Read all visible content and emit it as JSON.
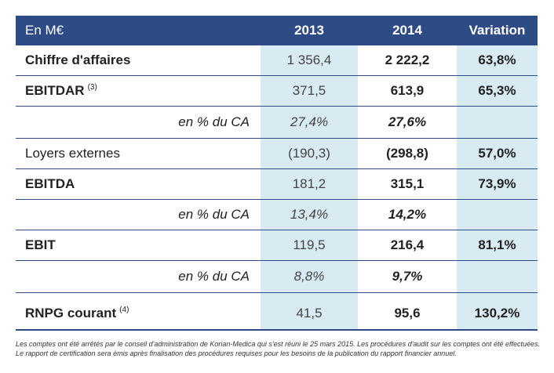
{
  "header": {
    "label": "En M€",
    "col2013": "2013",
    "col2014": "2014",
    "colVar": "Variation"
  },
  "rows": [
    {
      "label": "Chiffre d'affaires",
      "note": "",
      "v2013": "1 356,4",
      "v2014": "2 222,2",
      "var": "63,8%"
    },
    {
      "label": "EBITDAR",
      "note": "(3)",
      "v2013": "371,5",
      "v2014": "613,9",
      "var": "65,3%"
    },
    {
      "label": "en % du CA",
      "note": "",
      "v2013": "27,4%",
      "v2014": "27,6%",
      "var": ""
    },
    {
      "label": "Loyers externes",
      "note": "",
      "v2013": "(190,3)",
      "v2014": "(298,8)",
      "var": "57,0%"
    },
    {
      "label": "EBITDA",
      "note": "",
      "v2013": "181,2",
      "v2014": "315,1",
      "var": "73,9%"
    },
    {
      "label": "en % du CA",
      "note": "",
      "v2013": "13,4%",
      "v2014": "14,2%",
      "var": ""
    },
    {
      "label": "EBIT",
      "note": "",
      "v2013": "119,5",
      "v2014": "216,4",
      "var": "81,1%"
    },
    {
      "label": "en % du CA",
      "note": "",
      "v2013": "8,8%",
      "v2014": "9,7%",
      "var": ""
    },
    {
      "label": "RNPG courant",
      "note": "(4)",
      "v2013": "41,5",
      "v2014": "95,6",
      "var": "130,2%"
    }
  ],
  "footer": "Les comptes ont été arrêtés par le conseil d'administration de Korian-Medica qui s'est réuni le 25 mars 2015. Les procédures d'audit sur les comptes ont été effectuées. Le rapport de certification sera émis après finalisation des procédures requises pour les besoins de la publication du rapport financier annuel.",
  "colors": {
    "header_bg": "#2f4b86",
    "shade": "#d8ebf3",
    "rule": "#2f4b86"
  }
}
